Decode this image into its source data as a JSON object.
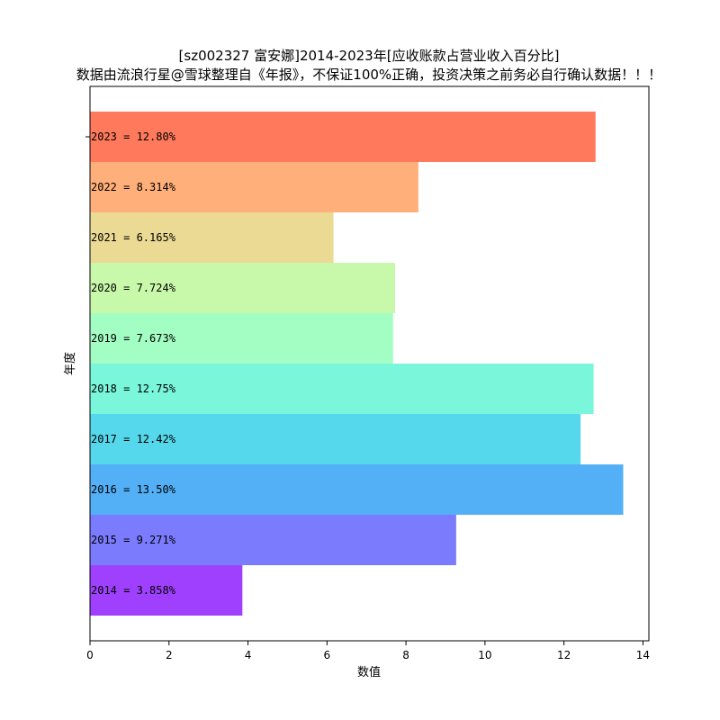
{
  "chart_data": {
    "type": "bar",
    "orientation": "horizontal",
    "title": "[sz002327 富安娜]2014-2023年[应收账款占营业收入百分比]",
    "subtitle": "数据由流浪行星@雪球整理自《年报》，不保证100%正确，投资决策之前务必自行确认数据！！！",
    "xlabel": "数值",
    "ylabel": "年度",
    "xlim": [
      0,
      14.15
    ],
    "xticks": [
      0,
      2,
      4,
      6,
      8,
      10,
      12,
      14
    ],
    "grid": false,
    "categories": [
      "2014",
      "2015",
      "2016",
      "2017",
      "2018",
      "2019",
      "2020",
      "2021",
      "2022",
      "2023"
    ],
    "values": [
      3.858,
      9.271,
      13.5,
      12.42,
      12.75,
      7.673,
      7.724,
      6.165,
      8.314,
      12.8
    ],
    "bar_labels": [
      "2014 = 3.858%",
      "2015 = 9.271%",
      "2016 = 13.50%",
      "2017 = 12.42%",
      "2018 = 12.75%",
      "2019 = 7.673%",
      "2020 = 7.724%",
      "2021 = 6.165%",
      "2022 = 8.314%",
      "2023 = 12.80%"
    ],
    "colors": [
      "#8000ff",
      "#4f4ffd",
      "#1996f3",
      "#1ccbe4",
      "#4df3ce",
      "#83fdaf",
      "#b6f68d",
      "#e4cd6f",
      "#ff944c",
      "#ff4d26"
    ]
  }
}
